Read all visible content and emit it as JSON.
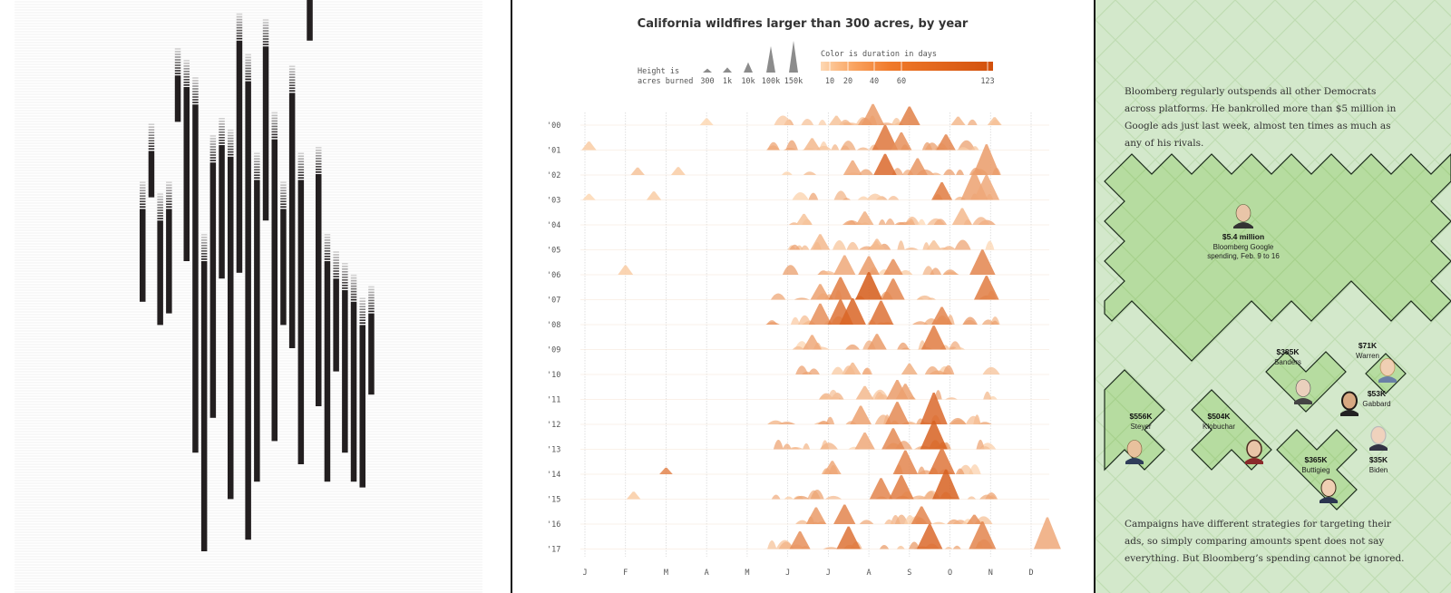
{
  "colors": {
    "bar": "#231f20",
    "ridge_light": "#fdd8b4",
    "ridge_dark": "#d9530f",
    "green_bg": "#d3e8cb",
    "green_shape": "#b9de9f",
    "outline": "#1b2a1b"
  },
  "left_panel": {
    "name": "barcode-columns-chart",
    "chart_data": {
      "type": "bar",
      "title": "",
      "columns": [
        {
          "x": 0,
          "start": 0.36,
          "end": 0.52
        },
        {
          "x": 1,
          "start": 0.26,
          "end": 0.34
        },
        {
          "x": 2,
          "start": 0.38,
          "end": 0.56
        },
        {
          "x": 3,
          "start": 0.36,
          "end": 0.54
        },
        {
          "x": 4,
          "start": 0.13,
          "end": 0.21
        },
        {
          "x": 5,
          "start": 0.15,
          "end": 0.45
        },
        {
          "x": 6,
          "start": 0.18,
          "end": 0.78
        },
        {
          "x": 7,
          "start": 0.45,
          "end": 0.95
        },
        {
          "x": 8,
          "start": 0.28,
          "end": 0.72
        },
        {
          "x": 9,
          "start": 0.25,
          "end": 0.48
        },
        {
          "x": 10,
          "start": 0.27,
          "end": 0.86
        },
        {
          "x": 11,
          "start": 0.07,
          "end": 0.47
        },
        {
          "x": 12,
          "start": 0.14,
          "end": 0.93
        },
        {
          "x": 13,
          "start": 0.31,
          "end": 0.83
        },
        {
          "x": 14,
          "start": 0.08,
          "end": 0.38
        },
        {
          "x": 15,
          "start": 0.24,
          "end": 0.76
        },
        {
          "x": 16,
          "start": 0.36,
          "end": 0.56
        },
        {
          "x": 17,
          "start": 0.16,
          "end": 0.6
        },
        {
          "x": 18,
          "start": 0.31,
          "end": 0.8
        },
        {
          "x": 19,
          "start": 0.0,
          "end": 0.07
        },
        {
          "x": 20,
          "start": 0.3,
          "end": 0.7
        },
        {
          "x": 21,
          "start": 0.45,
          "end": 0.83
        },
        {
          "x": 22,
          "start": 0.48,
          "end": 0.64
        },
        {
          "x": 23,
          "start": 0.5,
          "end": 0.78
        },
        {
          "x": 24,
          "start": 0.52,
          "end": 0.83
        },
        {
          "x": 25,
          "start": 0.56,
          "end": 0.84
        },
        {
          "x": 26,
          "start": 0.54,
          "end": 0.68
        }
      ]
    }
  },
  "mid_panel": {
    "title": "California wildfires larger than 300 acres, by year",
    "legend": {
      "height_label_1": "Height is",
      "height_label_2": "acres burned",
      "size_ticks": [
        "300",
        "1k",
        "10k",
        "100k",
        "150k"
      ],
      "color_label": "Color is duration in days",
      "color_ticks": [
        "10",
        "20",
        "40",
        "60",
        "123"
      ]
    },
    "chart_data": {
      "type": "area",
      "title": "California wildfires larger than 300 acres, by year",
      "xlabel": "",
      "ylabel": "",
      "x_ticks": [
        "J",
        "F",
        "M",
        "A",
        "M",
        "J",
        "J",
        "A",
        "S",
        "O",
        "N",
        "D"
      ],
      "y_ticks": [
        "'00",
        "'01",
        "'02",
        "'03",
        "'04",
        "'05",
        "'06",
        "'07",
        "'08",
        "'09",
        "'10",
        "'11",
        "'12",
        "'13",
        "'14",
        "'15",
        "'16",
        "'17"
      ],
      "size_legend_acres": [
        300,
        1000,
        10000,
        100000,
        150000
      ],
      "color_legend_days": [
        10,
        20,
        40,
        60,
        123
      ],
      "series": [
        {
          "name": "'00",
          "fires": [
            {
              "month": 3.0,
              "acres": 3000,
              "days": 10
            },
            {
              "month": 6.2,
              "acres": 8000,
              "days": 15
            },
            {
              "month": 7.1,
              "acres": 60000,
              "days": 40
            },
            {
              "month": 8.0,
              "acres": 45000,
              "days": 65
            },
            {
              "month": 9.2,
              "acres": 6000,
              "days": 20
            },
            {
              "month": 10.1,
              "acres": 5000,
              "days": 15
            }
          ]
        },
        {
          "name": "'01",
          "fires": [
            {
              "month": 0.1,
              "acres": 6000,
              "days": 12
            },
            {
              "month": 5.6,
              "acres": 15000,
              "days": 20
            },
            {
              "month": 7.4,
              "acres": 90000,
              "days": 75
            },
            {
              "month": 7.8,
              "acres": 40000,
              "days": 50
            },
            {
              "month": 8.9,
              "acres": 30000,
              "days": 60
            }
          ]
        },
        {
          "name": "'02",
          "fires": [
            {
              "month": 1.3,
              "acres": 4000,
              "days": 15
            },
            {
              "month": 2.3,
              "acres": 5000,
              "days": 12
            },
            {
              "month": 6.6,
              "acres": 25000,
              "days": 30
            },
            {
              "month": 7.4,
              "acres": 60000,
              "days": 90
            },
            {
              "month": 8.2,
              "acres": 35000,
              "days": 45
            },
            {
              "month": 9.9,
              "acres": 140000,
              "days": 40
            }
          ]
        },
        {
          "name": "'03",
          "fires": [
            {
              "month": 0.1,
              "acres": 2000,
              "days": 10
            },
            {
              "month": 1.7,
              "acres": 6000,
              "days": 12
            },
            {
              "month": 8.8,
              "acres": 40000,
              "days": 70
            },
            {
              "month": 9.6,
              "acres": 120000,
              "days": 35
            },
            {
              "month": 9.9,
              "acres": 90000,
              "days": 30
            }
          ]
        },
        {
          "name": "'04",
          "fires": [
            {
              "month": 5.4,
              "acres": 12000,
              "days": 15
            },
            {
              "month": 6.9,
              "acres": 20000,
              "days": 25
            },
            {
              "month": 9.3,
              "acres": 35000,
              "days": 20
            }
          ]
        },
        {
          "name": "'05",
          "fires": [
            {
              "month": 5.8,
              "acres": 30000,
              "days": 20
            },
            {
              "month": 7.2,
              "acres": 12000,
              "days": 18
            },
            {
              "month": 8.6,
              "acres": 8000,
              "days": 15
            }
          ]
        },
        {
          "name": "'06",
          "fires": [
            {
              "month": 1.0,
              "acres": 8000,
              "days": 12
            },
            {
              "month": 6.4,
              "acres": 50000,
              "days": 30
            },
            {
              "month": 7.0,
              "acres": 45000,
              "days": 40
            },
            {
              "month": 7.6,
              "acres": 30000,
              "days": 50
            },
            {
              "month": 9.8,
              "acres": 90000,
              "days": 60
            }
          ]
        },
        {
          "name": "'07",
          "fires": [
            {
              "month": 5.8,
              "acres": 30000,
              "days": 35
            },
            {
              "month": 6.3,
              "acres": 70000,
              "days": 70
            },
            {
              "month": 7.0,
              "acres": 110000,
              "days": 110
            },
            {
              "month": 7.6,
              "acres": 60000,
              "days": 60
            },
            {
              "month": 9.9,
              "acres": 80000,
              "days": 70
            }
          ]
        },
        {
          "name": "'08",
          "fires": [
            {
              "month": 5.8,
              "acres": 60000,
              "days": 50
            },
            {
              "month": 6.3,
              "acres": 90000,
              "days": 80
            },
            {
              "month": 6.6,
              "acres": 100000,
              "days": 95
            },
            {
              "month": 7.3,
              "acres": 80000,
              "days": 80
            },
            {
              "month": 8.8,
              "acres": 40000,
              "days": 60
            }
          ]
        },
        {
          "name": "'09",
          "fires": [
            {
              "month": 5.6,
              "acres": 25000,
              "days": 30
            },
            {
              "month": 7.2,
              "acres": 30000,
              "days": 40
            },
            {
              "month": 8.6,
              "acres": 80000,
              "days": 70
            }
          ]
        },
        {
          "name": "'10",
          "fires": [
            {
              "month": 6.6,
              "acres": 15000,
              "days": 20
            },
            {
              "month": 8.0,
              "acres": 12000,
              "days": 25
            }
          ]
        },
        {
          "name": "'11",
          "fires": [
            {
              "month": 6.9,
              "acres": 20000,
              "days": 20
            },
            {
              "month": 7.7,
              "acres": 50000,
              "days": 40
            },
            {
              "month": 7.9,
              "acres": 30000,
              "days": 35
            }
          ]
        },
        {
          "name": "'12",
          "fires": [
            {
              "month": 6.8,
              "acres": 45000,
              "days": 35
            },
            {
              "month": 7.7,
              "acres": 70000,
              "days": 55
            },
            {
              "month": 8.6,
              "acres": 150000,
              "days": 90
            }
          ]
        },
        {
          "name": "'13",
          "fires": [
            {
              "month": 6.9,
              "acres": 35000,
              "days": 30
            },
            {
              "month": 7.6,
              "acres": 60000,
              "days": 55
            },
            {
              "month": 8.6,
              "acres": 120000,
              "days": 100
            }
          ]
        },
        {
          "name": "'14",
          "fires": [
            {
              "month": 2.0,
              "acres": 2500,
              "days": 60
            },
            {
              "month": 6.1,
              "acres": 20000,
              "days": 30
            },
            {
              "month": 7.9,
              "acres": 80000,
              "days": 60
            },
            {
              "month": 8.8,
              "acres": 100000,
              "days": 75
            }
          ]
        },
        {
          "name": "'15",
          "fires": [
            {
              "month": 1.2,
              "acres": 4000,
              "days": 12
            },
            {
              "month": 7.3,
              "acres": 60000,
              "days": 60
            },
            {
              "month": 7.8,
              "acres": 80000,
              "days": 70
            },
            {
              "month": 8.9,
              "acres": 130000,
              "days": 100
            }
          ]
        },
        {
          "name": "'16",
          "fires": [
            {
              "month": 5.7,
              "acres": 35000,
              "days": 40
            },
            {
              "month": 6.4,
              "acres": 50000,
              "days": 60
            },
            {
              "month": 8.3,
              "acres": 40000,
              "days": 60
            },
            {
              "month": 9.6,
              "acres": 8000,
              "days": 50
            }
          ]
        },
        {
          "name": "'17",
          "fires": [
            {
              "month": 5.3,
              "acres": 40000,
              "days": 50
            },
            {
              "month": 6.5,
              "acres": 70000,
              "days": 80
            },
            {
              "month": 8.5,
              "acres": 90000,
              "days": 90
            },
            {
              "month": 9.8,
              "acres": 110000,
              "days": 60
            },
            {
              "month": 11.4,
              "acres": 150000,
              "days": 30
            }
          ]
        }
      ]
    }
  },
  "right_panel": {
    "intro": "Bloomberg regularly outspends all other Democrats across platforms. He bankrolled more than $5 million in Google ads just last week, almost ten times as much as any of his rivals.",
    "outro": "Campaigns have different strategies for targeting their ads, so simply comparing amounts spent does not say everything. But Bloomberg’s spending cannot be ignored.",
    "chart_data": {
      "type": "other",
      "title": "Google ad spending, Feb. 9 to 16",
      "values_usd": {
        "Bloomberg": 5400000,
        "Steyer": 556000,
        "Klobuchar": 504000,
        "Sanders": 385000,
        "Buttigieg": 365000,
        "Warren": 71000,
        "Gabbard": 53000,
        "Biden": 35000
      }
    },
    "bloomberg": {
      "amount": "$5.4 million",
      "desc_1": "Bloomberg Google",
      "desc_2": "spending, Feb. 9 to 16"
    },
    "candidates": [
      {
        "amount": "$385K",
        "name": "Sanders"
      },
      {
        "amount": "$71K",
        "name": "Warren"
      },
      {
        "amount": "$53K",
        "name": "Gabbard"
      },
      {
        "amount": "$556K",
        "name": "Steyer"
      },
      {
        "amount": "$504K",
        "name": "Klobuchar"
      },
      {
        "amount": "$365K",
        "name": "Buttigieg"
      },
      {
        "amount": "$35K",
        "name": "Biden"
      }
    ]
  }
}
